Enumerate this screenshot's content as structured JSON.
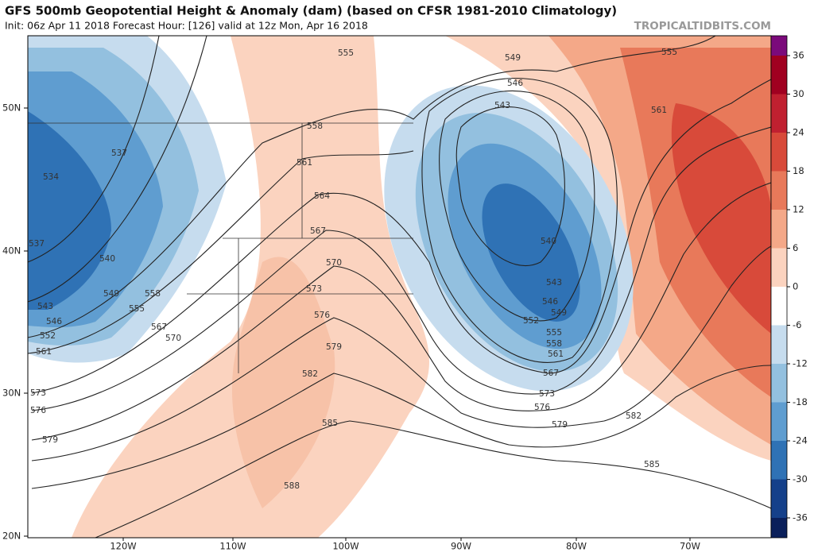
{
  "header": {
    "title": "GFS 500mb Geopotential Height & Anomaly (dam) (based on CFSR 1981-2010 Climatology)",
    "subtitle": "Init: 06z Apr 11 2018   Forecast Hour: [126]   valid at 12z Mon, Apr 16 2018",
    "credit": "TROPICALTIDBITS.COM"
  },
  "map": {
    "lat_labels": [
      "50N",
      "40N",
      "30N",
      "20N"
    ],
    "lon_labels": [
      "120W",
      "110W",
      "100W",
      "90W",
      "80W",
      "70W"
    ],
    "contour_labels": [
      555,
      549,
      555,
      546,
      543,
      561,
      558,
      537,
      534,
      561,
      564,
      567,
      540,
      537,
      570,
      540,
      543,
      573,
      549,
      558,
      546,
      555,
      543,
      549,
      576,
      552,
      546,
      567,
      555,
      552,
      570,
      579,
      558,
      561,
      561,
      567,
      582,
      573,
      573,
      576,
      576,
      582,
      585,
      579,
      579,
      585,
      588
    ]
  },
  "colorbar": {
    "ticks": [
      36,
      30,
      24,
      18,
      12,
      6,
      0,
      -6,
      -12,
      -18,
      -24,
      -30,
      -36
    ]
  }
}
